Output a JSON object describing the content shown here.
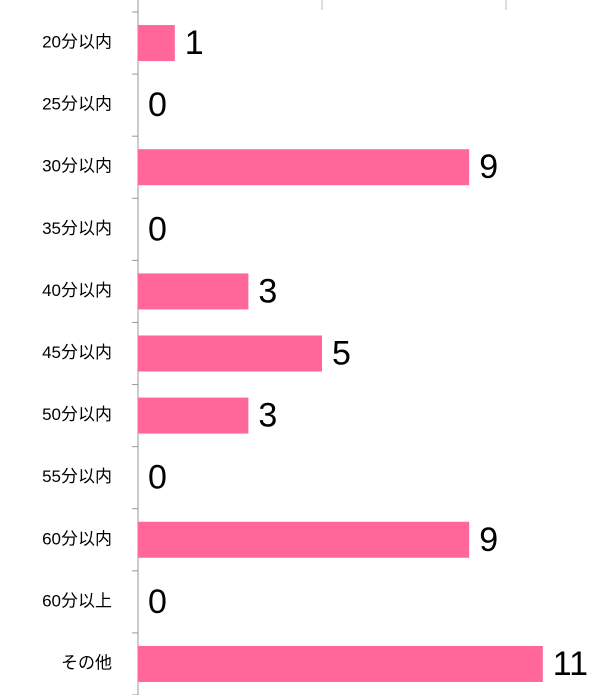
{
  "chart_data": {
    "type": "bar",
    "orientation": "horizontal",
    "categories": [
      "20分以内",
      "25分以内",
      "30分以内",
      "35分以内",
      "40分以内",
      "45分以内",
      "50分以内",
      "55分以内",
      "60分以内",
      "60分以上",
      "その他"
    ],
    "values": [
      1,
      0,
      9,
      0,
      3,
      5,
      3,
      0,
      9,
      0,
      11
    ],
    "color": "#ff6699",
    "xlim": [
      0,
      12.5
    ],
    "xticks": [
      0,
      5,
      10
    ],
    "grid": false
  }
}
